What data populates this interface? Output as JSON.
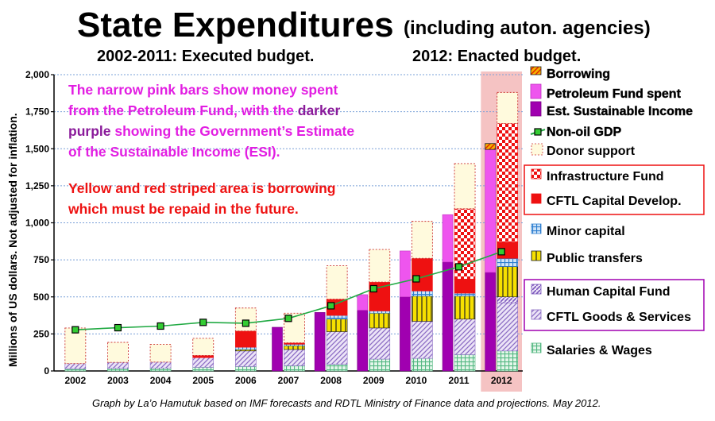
{
  "title": "State Expenditures",
  "title_note": "(including auton. agencies)",
  "subtitle_left": "2002-2011: Executed budget.",
  "subtitle_right": "2012: Enacted budget.",
  "ylabel": "Millions of US dollars.   Not adjusted for inflation.",
  "credit": "Graph by La’o Hamutuk based on IMF forecasts and RDTL Ministry of Finance data and projections.  May 2012.",
  "notes": {
    "pink_line1a": "The narrow pink bars show money spent",
    "pink_line2a": "from the Petroleum Fund, with the ",
    "pink_line2b": "darker",
    "pink_line3a": "purple",
    "pink_line3b": " showing the Government’s Estimate",
    "pink_line4": "of the Sustainable Income (ESI).",
    "red_line1": "Yellow and red striped area is borrowing",
    "red_line2": "which must be repaid in the future."
  },
  "colors": {
    "salaries": "#55b883",
    "goods": "#8b6cc4",
    "human_capital": "#8b6cc4",
    "public_transfers": "#f6e000",
    "minor_capital": "#2f7fd0",
    "cftl_capital": "#ee1111",
    "infrastructure": "#ee1111",
    "donor": "#fffadd",
    "esi": "#a000b0",
    "pf_spent": "#ee55ee",
    "borrowing": "#f6a000",
    "gdp_line": "#22aa44",
    "gdp_marker": "#33cc33",
    "highlight_2012": "#f3b8b8"
  },
  "chart_data": {
    "type": "bar",
    "stacking": "stacked",
    "categories": [
      "2002",
      "2003",
      "2004",
      "2005",
      "2006",
      "2007",
      "2008",
      "2009",
      "2010",
      "2011",
      "2012"
    ],
    "ylim": [
      0,
      2000
    ],
    "yticks": [
      0,
      250,
      500,
      750,
      1000,
      1250,
      1500,
      1750,
      2000
    ],
    "ytick_labels": [
      "0",
      "250",
      "500",
      "750",
      "1,000",
      "1,250",
      "1,500",
      "1,750",
      "2,000"
    ],
    "grid": "horizontal dotted",
    "highlight_category": "2012",
    "stacked_series": [
      {
        "name": "Salaries & Wages",
        "key": "salaries",
        "values": [
          15,
          18,
          20,
          25,
          30,
          35,
          45,
          80,
          85,
          110,
          135
        ]
      },
      {
        "name": "CFTL Goods & Services",
        "key": "goods",
        "values": [
          35,
          40,
          40,
          65,
          105,
          110,
          220,
          210,
          250,
          240,
          325
        ]
      },
      {
        "name": "Human Capital Fund",
        "key": "human_capital",
        "values": [
          0,
          0,
          0,
          0,
          0,
          0,
          0,
          0,
          0,
          0,
          40
        ]
      },
      {
        "name": "Public transfers",
        "key": "public_transfers",
        "values": [
          0,
          0,
          0,
          0,
          10,
          25,
          85,
          100,
          170,
          155,
          205
        ]
      },
      {
        "name": "Minor capital",
        "key": "minor_capital",
        "values": [
          0,
          0,
          0,
          0,
          15,
          10,
          25,
          15,
          35,
          20,
          55
        ]
      },
      {
        "name": "CFTL Capital Develop.",
        "key": "cftl_capital",
        "values": [
          0,
          0,
          0,
          15,
          110,
          10,
          110,
          195,
          220,
          95,
          110
        ]
      },
      {
        "name": "Infrastructure Fund",
        "key": "infrastructure",
        "values": [
          0,
          0,
          0,
          0,
          0,
          0,
          0,
          0,
          0,
          475,
          800
        ]
      },
      {
        "name": "Donor support",
        "key": "donor",
        "values": [
          240,
          135,
          120,
          115,
          155,
          200,
          225,
          220,
          250,
          305,
          210
        ]
      }
    ],
    "petroleum_fund_bars": {
      "categories": [
        "2007",
        "2008",
        "2009",
        "2010",
        "2011",
        "2012"
      ],
      "esi": [
        295,
        395,
        410,
        500,
        735,
        665
      ],
      "pf_spent_above_esi": [
        0,
        0,
        105,
        310,
        320,
        830
      ],
      "borrowing": [
        0,
        0,
        0,
        0,
        0,
        40
      ]
    },
    "line_series": {
      "name": "Non-oil GDP",
      "values": [
        278,
        292,
        303,
        328,
        322,
        355,
        440,
        555,
        622,
        703,
        805
      ]
    },
    "legend": [
      {
        "label": "Borrowing",
        "key": "borrowing"
      },
      {
        "label": "Petroleum Fund spent",
        "key": "pf_spent"
      },
      {
        "label": "Est. Sustainable Income",
        "key": "esi"
      },
      {
        "label": "Non-oil GDP",
        "key": "gdp_line"
      },
      {
        "label": "Donor support",
        "key": "donor"
      },
      {
        "label": "Infrastructure Fund",
        "key": "infrastructure"
      },
      {
        "label": "CFTL Capital Develop.",
        "key": "cftl_capital"
      },
      {
        "label": "Minor capital",
        "key": "minor_capital"
      },
      {
        "label": "Public transfers",
        "key": "public_transfers"
      },
      {
        "label": "Human Capital Fund",
        "key": "human_capital"
      },
      {
        "label": "CFTL Goods & Services",
        "key": "goods"
      },
      {
        "label": "Salaries & Wages",
        "key": "salaries"
      }
    ]
  }
}
